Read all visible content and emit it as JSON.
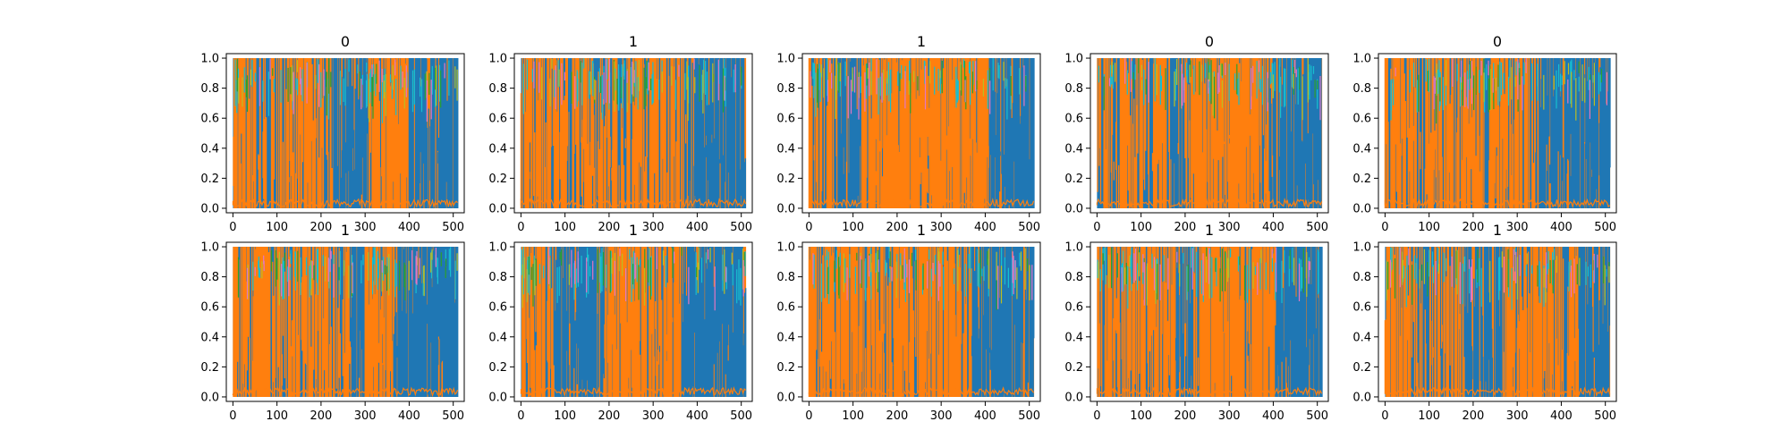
{
  "chart_data": {
    "type": "line",
    "description_grid": "2x5",
    "x_ticks": [
      0,
      100,
      200,
      300,
      400,
      500
    ],
    "y_ticks": [
      0.0,
      0.2,
      0.4,
      0.6,
      0.8,
      1.0
    ],
    "x_tick_labels": [
      "0",
      "100",
      "200",
      "300",
      "400",
      "500"
    ],
    "y_tick_labels": [
      "0.0",
      "0.2",
      "0.4",
      "0.6",
      "0.8",
      "1.0"
    ],
    "xlim": [
      -15,
      525
    ],
    "ylim": [
      -0.03,
      1.03
    ],
    "series_colors": {
      "blue": "#1f77b4",
      "orange": "#ff7f0e",
      "cyan": "#17becf",
      "green": "#2ca02c",
      "olive": "#bcbd22",
      "pink": "#e377c2"
    },
    "panels": [
      {
        "title": "0",
        "segments": [
          {
            "x0": 0,
            "x1": 225,
            "dominant": "orange",
            "mix": 0.55
          },
          {
            "x0": 225,
            "x1": 310,
            "dominant": "blue",
            "mix": 0.8
          },
          {
            "x0": 310,
            "x1": 400,
            "dominant": "orange",
            "mix": 0.7
          },
          {
            "x0": 400,
            "x1": 511,
            "dominant": "blue",
            "mix": 0.75
          }
        ]
      },
      {
        "title": "1",
        "segments": [
          {
            "x0": 0,
            "x1": 110,
            "dominant": "orange",
            "mix": 0.55
          },
          {
            "x0": 110,
            "x1": 380,
            "dominant": "orange",
            "mix": 0.62
          },
          {
            "x0": 380,
            "x1": 511,
            "dominant": "blue",
            "mix": 0.8
          }
        ]
      },
      {
        "title": "1",
        "segments": [
          {
            "x0": 0,
            "x1": 60,
            "dominant": "orange",
            "mix": 0.5
          },
          {
            "x0": 60,
            "x1": 120,
            "dominant": "blue",
            "mix": 0.7
          },
          {
            "x0": 120,
            "x1": 410,
            "dominant": "orange",
            "mix": 0.82
          },
          {
            "x0": 410,
            "x1": 511,
            "dominant": "blue",
            "mix": 0.8
          }
        ]
      },
      {
        "title": "0",
        "segments": [
          {
            "x0": 0,
            "x1": 170,
            "dominant": "orange",
            "mix": 0.6
          },
          {
            "x0": 170,
            "x1": 200,
            "dominant": "blue",
            "mix": 0.75
          },
          {
            "x0": 200,
            "x1": 390,
            "dominant": "orange",
            "mix": 0.75
          },
          {
            "x0": 390,
            "x1": 511,
            "dominant": "blue",
            "mix": 0.8
          }
        ]
      },
      {
        "title": "0",
        "segments": [
          {
            "x0": 0,
            "x1": 350,
            "dominant": "orange",
            "mix": 0.6
          },
          {
            "x0": 350,
            "x1": 511,
            "dominant": "blue",
            "mix": 0.82
          }
        ]
      },
      {
        "title": "1",
        "segments": [
          {
            "x0": 0,
            "x1": 265,
            "dominant": "orange",
            "mix": 0.58
          },
          {
            "x0": 265,
            "x1": 300,
            "dominant": "blue",
            "mix": 0.7
          },
          {
            "x0": 300,
            "x1": 365,
            "dominant": "orange",
            "mix": 0.72
          },
          {
            "x0": 365,
            "x1": 511,
            "dominant": "blue",
            "mix": 0.82
          }
        ]
      },
      {
        "title": "1",
        "segments": [
          {
            "x0": 0,
            "x1": 75,
            "dominant": "orange",
            "mix": 0.55
          },
          {
            "x0": 75,
            "x1": 190,
            "dominant": "blue",
            "mix": 0.78
          },
          {
            "x0": 190,
            "x1": 365,
            "dominant": "orange",
            "mix": 0.75
          },
          {
            "x0": 365,
            "x1": 511,
            "dominant": "blue",
            "mix": 0.8
          }
        ]
      },
      {
        "title": "1",
        "segments": [
          {
            "x0": 0,
            "x1": 370,
            "dominant": "orange",
            "mix": 0.7
          },
          {
            "x0": 370,
            "x1": 511,
            "dominant": "blue",
            "mix": 0.82
          }
        ]
      },
      {
        "title": "1",
        "segments": [
          {
            "x0": 0,
            "x1": 180,
            "dominant": "orange",
            "mix": 0.6
          },
          {
            "x0": 180,
            "x1": 220,
            "dominant": "blue",
            "mix": 0.75
          },
          {
            "x0": 220,
            "x1": 410,
            "dominant": "orange",
            "mix": 0.75
          },
          {
            "x0": 410,
            "x1": 511,
            "dominant": "blue",
            "mix": 0.8
          }
        ]
      },
      {
        "title": "1",
        "segments": [
          {
            "x0": 0,
            "x1": 180,
            "dominant": "orange",
            "mix": 0.55
          },
          {
            "x0": 180,
            "x1": 270,
            "dominant": "blue",
            "mix": 0.75
          },
          {
            "x0": 270,
            "x1": 440,
            "dominant": "orange",
            "mix": 0.72
          },
          {
            "x0": 440,
            "x1": 511,
            "dominant": "blue",
            "mix": 0.8
          }
        ]
      }
    ]
  }
}
